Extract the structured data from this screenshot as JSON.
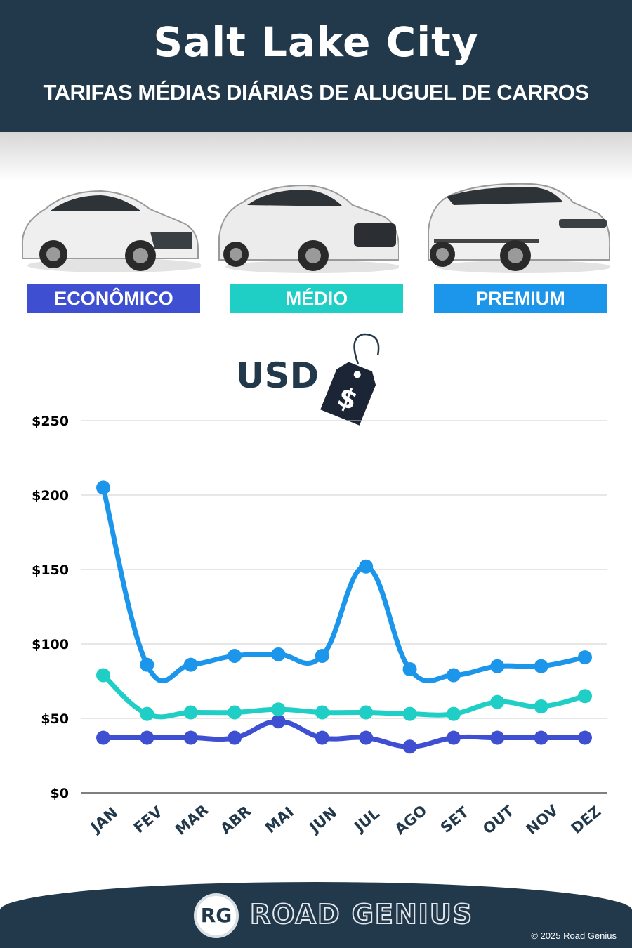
{
  "header": {
    "title": "Salt Lake City",
    "subtitle": "TARIFAS MÉDIAS DIÁRIAS DE ALUGUEL DE CARROS"
  },
  "categories": [
    {
      "label": "ECONÔMICO",
      "color": "#3f4fd1"
    },
    {
      "label": "MÉDIO",
      "color": "#1fcfc6"
    },
    {
      "label": "PREMIUM",
      "color": "#1c96ea"
    }
  ],
  "currency_label": "USD",
  "price_tag_symbol": "$",
  "chart_data": {
    "type": "line",
    "title": "",
    "xlabel": "",
    "ylabel": "",
    "categories": [
      "JAN",
      "FEV",
      "MAR",
      "ABR",
      "MAI",
      "JUN",
      "JUL",
      "AGO",
      "SET",
      "OUT",
      "NOV",
      "DEZ"
    ],
    "ylim": [
      0,
      250
    ],
    "yticks": [
      0,
      50,
      100,
      150,
      200,
      250
    ],
    "ytick_labels": [
      "$0",
      "$50",
      "$100",
      "$150",
      "$200",
      "$250"
    ],
    "grid": true,
    "series": [
      {
        "color": "#3f4fd1",
        "values": [
          37,
          37,
          37,
          37,
          48,
          37,
          37,
          31,
          37,
          37,
          37,
          37
        ]
      },
      {
        "color": "#1fcfc6",
        "values": [
          79,
          53,
          54,
          54,
          56,
          54,
          54,
          53,
          53,
          61,
          58,
          65
        ]
      },
      {
        "color": "#1c96ea",
        "values": [
          205,
          86,
          86,
          92,
          93,
          92,
          152,
          83,
          79,
          85,
          85,
          91
        ]
      }
    ]
  },
  "footer": {
    "logo_monogram": "RG",
    "brand": "ROAD GENIUS",
    "copyright": "© 2025 Road Genius"
  }
}
